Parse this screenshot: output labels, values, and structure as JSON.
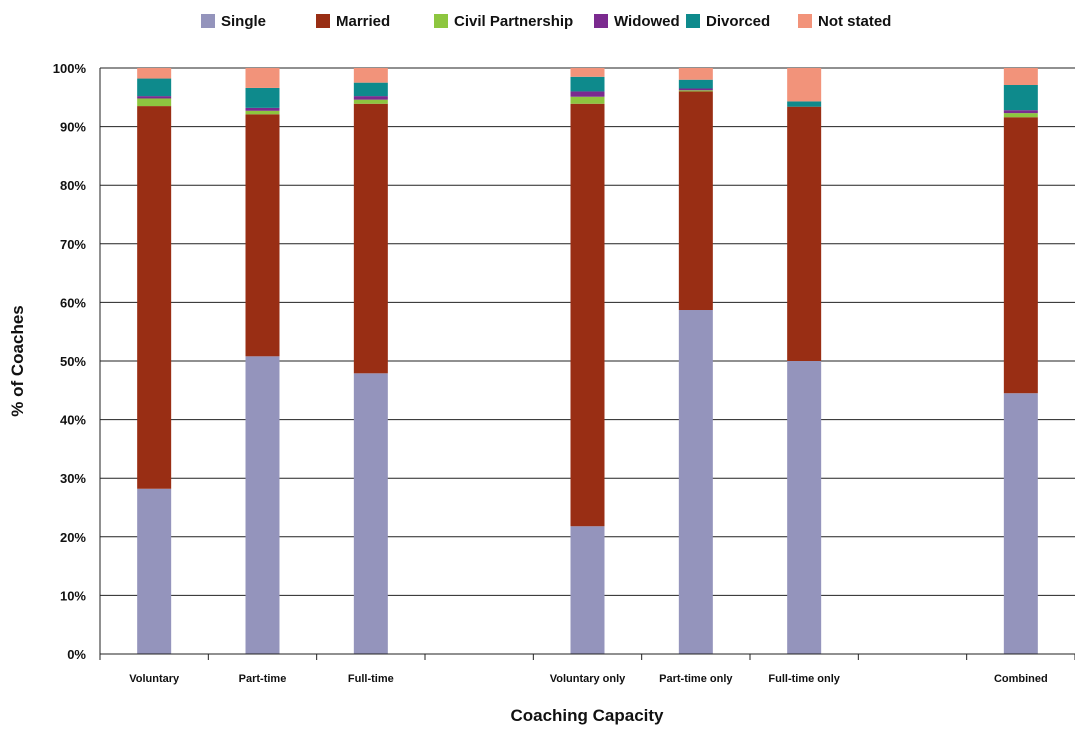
{
  "chart_data": {
    "type": "bar",
    "stacked": true,
    "xlabel": "Coaching Capacity",
    "ylabel": "% of Coaches",
    "ylim": [
      0,
      100
    ],
    "yticks": [
      "0%",
      "10%",
      "20%",
      "30%",
      "40%",
      "50%",
      "60%",
      "70%",
      "80%",
      "90%",
      "100%"
    ],
    "grid": true,
    "legend_position": "top",
    "categories": [
      "Voluntary",
      "Part-time",
      "Full-time",
      "",
      "Voluntary only",
      "Part-time only",
      "Full-time only",
      "",
      "Combined"
    ],
    "series": [
      {
        "name": "Single",
        "color": "#9494bc",
        "values": [
          28.2,
          50.8,
          47.9,
          null,
          21.8,
          58.7,
          50.0,
          null,
          44.5
        ]
      },
      {
        "name": "Married",
        "color": "#992e14",
        "values": [
          65.3,
          41.3,
          46.0,
          null,
          72.1,
          37.3,
          43.4,
          null,
          47.1
        ]
      },
      {
        "name": "Civil Partnership",
        "color": "#8dc63f",
        "values": [
          1.3,
          0.6,
          0.7,
          null,
          1.2,
          0.2,
          0.0,
          null,
          0.7
        ]
      },
      {
        "name": "Widowed",
        "color": "#7b2a8f",
        "values": [
          0.4,
          0.5,
          0.6,
          null,
          0.9,
          0.3,
          0.0,
          null,
          0.5
        ]
      },
      {
        "name": "Divorced",
        "color": "#0e8a8c",
        "values": [
          3.0,
          3.4,
          2.3,
          null,
          2.5,
          1.5,
          0.9,
          null,
          4.3
        ]
      },
      {
        "name": "Not stated",
        "color": "#f2937a",
        "values": [
          1.8,
          3.4,
          2.5,
          null,
          1.5,
          2.0,
          5.7,
          null,
          2.9
        ]
      }
    ]
  }
}
